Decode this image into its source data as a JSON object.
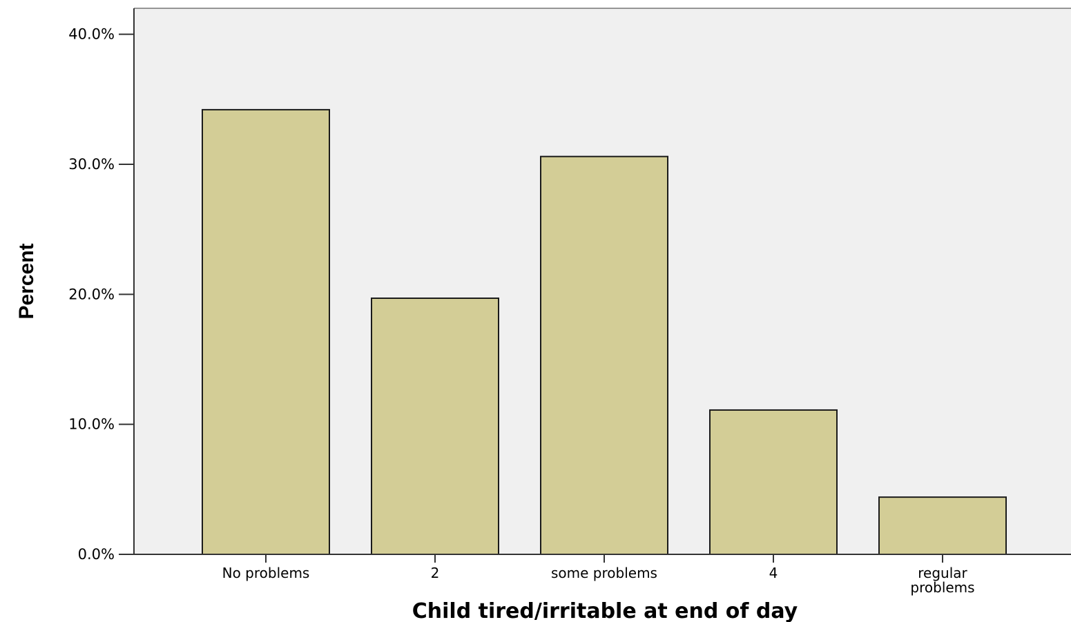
{
  "chart_data": {
    "type": "bar",
    "categories": [
      "No problems",
      "2",
      "some problems",
      "4",
      "regular problems"
    ],
    "category_label_lines": [
      [
        "No problems"
      ],
      [
        "2"
      ],
      [
        "some problems"
      ],
      [
        "4"
      ],
      [
        "regular",
        "problems"
      ]
    ],
    "values": [
      34.2,
      19.7,
      30.6,
      11.1,
      4.4
    ],
    "xlabel": "Child tired/irritable at end of day",
    "ylabel": "Percent",
    "ylim": [
      0,
      42
    ],
    "yticks": [
      0,
      10,
      20,
      30,
      40
    ],
    "ytick_labels": [
      "0.0%",
      "10.0%",
      "20.0%",
      "30.0%",
      "40.0%"
    ],
    "grid": false,
    "colors": {
      "bar_fill": "#d3cd96",
      "bar_stroke": "#1a1a1a",
      "plot_background": "#f0f0f0",
      "axis": "#333333"
    }
  }
}
